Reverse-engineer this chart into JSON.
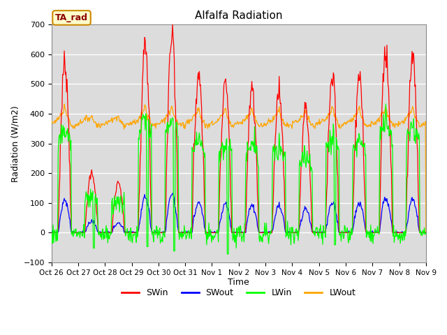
{
  "title": "Alfalfa Radiation",
  "ylabel": "Radiation (W/m2)",
  "xlabel": "Time",
  "ylim": [
    -100,
    700
  ],
  "yticks": [
    -100,
    0,
    100,
    200,
    300,
    400,
    500,
    600,
    700
  ],
  "xtick_labels": [
    "Oct 26",
    "Oct 27",
    "Oct 28",
    "Oct 29",
    "Oct 30",
    "Oct 31",
    "Nov 1",
    "Nov 2",
    "Nov 3",
    "Nov 4",
    "Nov 5",
    "Nov 6",
    "Nov 7",
    "Nov 8",
    "Nov 9"
  ],
  "legend_labels": [
    "SWin",
    "SWout",
    "LWin",
    "LWout"
  ],
  "legend_colors": [
    "red",
    "blue",
    "lime",
    "orange"
  ],
  "ta_rad_label": "TA_rad",
  "bg_color": "#dcdcdc",
  "line_colors": [
    "red",
    "blue",
    "lime",
    "orange"
  ]
}
